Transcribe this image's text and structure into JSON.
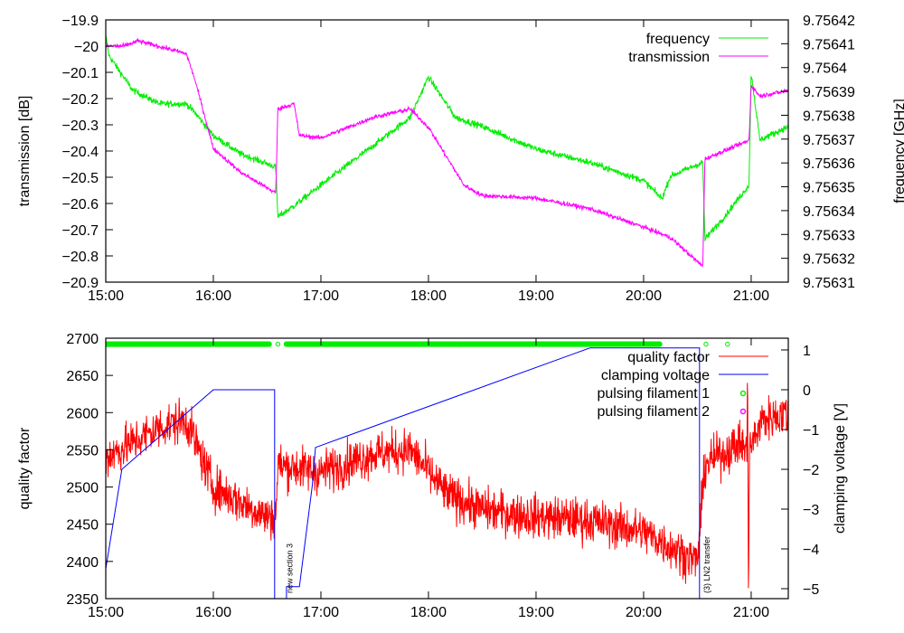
{
  "chart_data": [
    {
      "type": "line",
      "panel": "top",
      "xlabel": "",
      "ylabel": "transmission [dB]",
      "y2label": "frequency [GHz]",
      "xlim": [
        15.0,
        21.345
      ],
      "ylim": [
        -20.9,
        -19.9
      ],
      "y2lim": [
        9.75631,
        9.75642
      ],
      "xticks": [
        {
          "v": 15,
          "label": "15:00"
        },
        {
          "v": 16,
          "label": "16:00"
        },
        {
          "v": 17,
          "label": "17:00"
        },
        {
          "v": 18,
          "label": "18:00"
        },
        {
          "v": 19,
          "label": "19:00"
        },
        {
          "v": 20,
          "label": "20:00"
        },
        {
          "v": 21,
          "label": "21:00"
        }
      ],
      "yticks": [
        {
          "v": -19.9,
          "label": "−19.9"
        },
        {
          "v": -20.0,
          "label": "−20"
        },
        {
          "v": -20.1,
          "label": "−20.1"
        },
        {
          "v": -20.2,
          "label": "−20.2"
        },
        {
          "v": -20.3,
          "label": "−20.3"
        },
        {
          "v": -20.4,
          "label": "−20.4"
        },
        {
          "v": -20.5,
          "label": "−20.5"
        },
        {
          "v": -20.6,
          "label": "−20.6"
        },
        {
          "v": -20.7,
          "label": "−20.7"
        },
        {
          "v": -20.8,
          "label": "−20.8"
        },
        {
          "v": -20.9,
          "label": "−20.9"
        }
      ],
      "y2ticks": [
        {
          "v": 9.75642,
          "label": "9.75642"
        },
        {
          "v": 9.75641,
          "label": "9.75641"
        },
        {
          "v": 9.7564,
          "label": "9.7564"
        },
        {
          "v": 9.75639,
          "label": "9.75639"
        },
        {
          "v": 9.75638,
          "label": "9.75638"
        },
        {
          "v": 9.75637,
          "label": "9.75637"
        },
        {
          "v": 9.75636,
          "label": "9.75636"
        },
        {
          "v": 9.75635,
          "label": "9.75635"
        },
        {
          "v": 9.75634,
          "label": "9.75634"
        },
        {
          "v": 9.75633,
          "label": "9.75633"
        },
        {
          "v": 9.75632,
          "label": "9.75632"
        },
        {
          "v": 9.75631,
          "label": "9.75631"
        }
      ],
      "legend_position": "top-right",
      "series": [
        {
          "name": "frequency",
          "axis": "y2",
          "color": "#00ee00",
          "noise": 1.3e-06,
          "points": [
            [
              15.0,
              9.7564132
            ],
            [
              15.03,
              9.756405
            ],
            [
              15.25,
              9.7563905
            ],
            [
              15.5,
              9.7563848
            ],
            [
              15.75,
              9.7563848
            ],
            [
              15.83,
              9.756381
            ],
            [
              16.0,
              9.7563715
            ],
            [
              16.25,
              9.7563639
            ],
            [
              16.58,
              9.7563583
            ],
            [
              16.6,
              9.7563374
            ],
            [
              16.75,
              9.756342
            ],
            [
              17.0,
              9.7563507
            ],
            [
              17.5,
              9.7563677
            ],
            [
              17.83,
              9.7563791
            ],
            [
              18.0,
              9.7563961
            ],
            [
              18.25,
              9.7563791
            ],
            [
              18.5,
              9.7563753
            ],
            [
              19.0,
              9.7563658
            ],
            [
              19.5,
              9.7563602
            ],
            [
              20.0,
              9.7563526
            ],
            [
              20.17,
              9.756345
            ],
            [
              20.25,
              9.7563545
            ],
            [
              20.55,
              9.7563602
            ],
            [
              20.57,
              9.756328
            ],
            [
              20.75,
              9.7563374
            ],
            [
              20.98,
              9.7563507
            ],
            [
              21.0,
              9.756398
            ],
            [
              21.08,
              9.7563696
            ],
            [
              21.345,
              9.7563753
            ]
          ]
        },
        {
          "name": "transmission",
          "axis": "y",
          "color": "#ff00ff",
          "noise": 0.008,
          "points": [
            [
              15.0,
              -20.0
            ],
            [
              15.17,
              -20.0
            ],
            [
              15.3,
              -19.98
            ],
            [
              15.67,
              -20.02
            ],
            [
              15.75,
              -20.03
            ],
            [
              15.83,
              -20.13
            ],
            [
              16.0,
              -20.39
            ],
            [
              16.25,
              -20.48
            ],
            [
              16.58,
              -20.56
            ],
            [
              16.6,
              -20.24
            ],
            [
              16.75,
              -20.22
            ],
            [
              16.8,
              -20.34
            ],
            [
              17.0,
              -20.35
            ],
            [
              17.5,
              -20.27
            ],
            [
              17.83,
              -20.24
            ],
            [
              18.0,
              -20.31
            ],
            [
              18.33,
              -20.53
            ],
            [
              18.5,
              -20.57
            ],
            [
              19.0,
              -20.58
            ],
            [
              19.5,
              -20.62
            ],
            [
              20.0,
              -20.69
            ],
            [
              20.25,
              -20.73
            ],
            [
              20.55,
              -20.84
            ],
            [
              20.57,
              -20.43
            ],
            [
              20.98,
              -20.36
            ],
            [
              21.0,
              -20.15
            ],
            [
              21.08,
              -20.19
            ],
            [
              21.345,
              -20.17
            ]
          ]
        }
      ]
    },
    {
      "type": "line",
      "panel": "bottom",
      "xlabel": "",
      "ylabel": "quality factor",
      "y2label": "clamping voltage [V]",
      "xlim": [
        15.0,
        21.345
      ],
      "ylim": [
        2350,
        2700
      ],
      "y2lim": [
        -5.25,
        1.295
      ],
      "xticks": [
        {
          "v": 15,
          "label": "15:00"
        },
        {
          "v": 16,
          "label": "16:00"
        },
        {
          "v": 17,
          "label": "17:00"
        },
        {
          "v": 18,
          "label": "18:00"
        },
        {
          "v": 19,
          "label": "19:00"
        },
        {
          "v": 20,
          "label": "20:00"
        },
        {
          "v": 21,
          "label": "21:00"
        }
      ],
      "yticks": [
        {
          "v": 2350,
          "label": "2350"
        },
        {
          "v": 2400,
          "label": "2400"
        },
        {
          "v": 2450,
          "label": "2450"
        },
        {
          "v": 2500,
          "label": "2500"
        },
        {
          "v": 2550,
          "label": "2550"
        },
        {
          "v": 2600,
          "label": "2600"
        },
        {
          "v": 2650,
          "label": "2650"
        },
        {
          "v": 2700,
          "label": "2700"
        }
      ],
      "y2ticks": [
        {
          "v": 1,
          "label": "1"
        },
        {
          "v": 0,
          "label": "0"
        },
        {
          "v": -1,
          "label": "−1"
        },
        {
          "v": -2,
          "label": "−2"
        },
        {
          "v": -3,
          "label": "−3"
        },
        {
          "v": -4,
          "label": "−4"
        },
        {
          "v": -5,
          "label": "−5"
        }
      ],
      "legend_position": "top-right",
      "series": [
        {
          "name": "quality factor",
          "axis": "y",
          "color": "#ff0000",
          "noise": 28,
          "points": [
            [
              15.0,
              2540
            ],
            [
              15.5,
              2580
            ],
            [
              15.75,
              2590
            ],
            [
              16.0,
              2500
            ],
            [
              16.5,
              2460
            ],
            [
              16.58,
              2460
            ],
            [
              16.6,
              2530
            ],
            [
              17.0,
              2520
            ],
            [
              17.5,
              2545
            ],
            [
              17.83,
              2550
            ],
            [
              18.17,
              2490
            ],
            [
              18.5,
              2470
            ],
            [
              19.0,
              2460
            ],
            [
              19.5,
              2455
            ],
            [
              20.0,
              2440
            ],
            [
              20.5,
              2400
            ],
            [
              20.57,
              2530
            ],
            [
              20.9,
              2560
            ],
            [
              20.96,
              2545
            ],
            [
              20.965,
              2700
            ],
            [
              20.975,
              2350
            ],
            [
              20.985,
              2550
            ],
            [
              21.1,
              2590
            ],
            [
              21.345,
              2600
            ]
          ]
        },
        {
          "name": "clamping voltage",
          "axis": "y2",
          "color": "#0000ff",
          "noise": 0,
          "points": [
            [
              15.0,
              -4.5
            ],
            [
              15.15,
              -2.0
            ],
            [
              16.0,
              0
            ],
            [
              16.57,
              0
            ],
            [
              16.57,
              -5.3
            ],
            [
              16.68,
              -5.3
            ],
            [
              16.68,
              -4.95
            ],
            [
              16.8,
              -4.95
            ],
            [
              16.92,
              -2.4
            ],
            [
              16.95,
              -1.45
            ],
            [
              19.5,
              1.05
            ],
            [
              20.52,
              1.05
            ],
            [
              20.52,
              -5.3
            ]
          ]
        },
        {
          "name": "pulsing filament 1",
          "axis": "y",
          "color": "#00ee00",
          "marker": "circle",
          "value": 2692,
          "ranges": [
            [
              15.0,
              16.52
            ],
            [
              16.68,
              20.15
            ]
          ],
          "points_t": [
            16.6,
            20.58,
            20.78
          ]
        },
        {
          "name": "pulsing filament 2",
          "axis": "y",
          "color": "#ff00ff",
          "marker": "circle",
          "ranges": [],
          "points_t": []
        }
      ],
      "annotations": [
        {
          "t": 16.7,
          "text": "new section 3"
        },
        {
          "t": 20.58,
          "text": "(3) LN2 transfer"
        }
      ]
    }
  ]
}
